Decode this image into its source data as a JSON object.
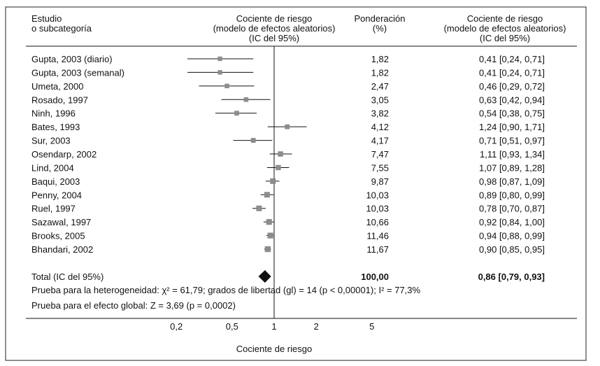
{
  "chart_data": {
    "type": "forest",
    "headers": {
      "study": [
        "Estudio",
        "o subcategoría"
      ],
      "plot": [
        "Cociente de riesgo",
        "(modelo de efectos aleatorios)",
        "(IC del 95%)"
      ],
      "weight": [
        "Ponderación",
        "(%)"
      ],
      "ci": [
        "Cociente de riesgo",
        "(modelo de efectos aleatorios)",
        "(IC del 95%)"
      ]
    },
    "studies": [
      {
        "name": "Gupta, 2003 (diario)",
        "weight": "1,82",
        "rr": 0.41,
        "lo": 0.24,
        "hi": 0.71,
        "ci_text": "0,41 [0,24, 0,71]"
      },
      {
        "name": "Gupta, 2003 (semanal)",
        "weight": "1,82",
        "rr": 0.41,
        "lo": 0.24,
        "hi": 0.71,
        "ci_text": "0,41 [0,24, 0,71]"
      },
      {
        "name": "Umeta, 2000",
        "weight": "2,47",
        "rr": 0.46,
        "lo": 0.29,
        "hi": 0.72,
        "ci_text": "0,46 [0,29, 0,72]"
      },
      {
        "name": "Rosado, 1997",
        "weight": "3,05",
        "rr": 0.63,
        "lo": 0.42,
        "hi": 0.94,
        "ci_text": "0,63 [0,42, 0,94]"
      },
      {
        "name": "Ninh, 1996",
        "weight": "3,82",
        "rr": 0.54,
        "lo": 0.38,
        "hi": 0.75,
        "ci_text": "0,54 [0,38, 0,75]"
      },
      {
        "name": "Bates, 1993",
        "weight": "4,12",
        "rr": 1.24,
        "lo": 0.9,
        "hi": 1.71,
        "ci_text": "1,24 [0,90, 1,71]"
      },
      {
        "name": "Sur, 2003",
        "weight": "4,17",
        "rr": 0.71,
        "lo": 0.51,
        "hi": 0.97,
        "ci_text": "0,71 [0,51, 0,97]"
      },
      {
        "name": "Osendarp, 2002",
        "weight": "7,47",
        "rr": 1.11,
        "lo": 0.93,
        "hi": 1.34,
        "ci_text": "1,11 [0,93, 1,34]"
      },
      {
        "name": "Lind, 2004",
        "weight": "7,55",
        "rr": 1.07,
        "lo": 0.89,
        "hi": 1.28,
        "ci_text": "1,07 [0,89, 1,28]"
      },
      {
        "name": "Baqui, 2003",
        "weight": "9,87",
        "rr": 0.98,
        "lo": 0.87,
        "hi": 1.09,
        "ci_text": "0,98 [0,87, 1,09]"
      },
      {
        "name": "Penny, 2004",
        "weight": "10,03",
        "rr": 0.89,
        "lo": 0.8,
        "hi": 0.99,
        "ci_text": "0,89 [0,80, 0,99]"
      },
      {
        "name": "Ruel, 1997",
        "weight": "10,03",
        "rr": 0.78,
        "lo": 0.7,
        "hi": 0.87,
        "ci_text": "0,78 [0,70, 0,87]"
      },
      {
        "name": "Sazawal, 1997",
        "weight": "10,66",
        "rr": 0.92,
        "lo": 0.84,
        "hi": 1.0,
        "ci_text": "0,92 [0,84, 1,00]"
      },
      {
        "name": "Brooks, 2005",
        "weight": "11,46",
        "rr": 0.94,
        "lo": 0.88,
        "hi": 0.99,
        "ci_text": "0,94 [0,88, 0,99]"
      },
      {
        "name": "Bhandari, 2002",
        "weight": "11,67",
        "rr": 0.9,
        "lo": 0.85,
        "hi": 0.95,
        "ci_text": "0,90 [0,85, 0,95]"
      }
    ],
    "total": {
      "name": "Total (IC del 95%)",
      "weight": "100,00",
      "rr": 0.86,
      "lo": 0.79,
      "hi": 0.93,
      "ci_text": "0,86 [0,79, 0,93]"
    },
    "heterogeneity": "Prueba para la heterogeneidad: χ² = 61,79; grados de libertad (gl) = 14 (p < 0,00001); I² = 77,3%",
    "overall_effect": "Prueba para el efecto global: Z = 3,69 (p = 0,0002)",
    "x_scale": "log",
    "x_ticks": [
      {
        "v": 0.2,
        "label": "0,2"
      },
      {
        "v": 0.5,
        "label": "0,5"
      },
      {
        "v": 1,
        "label": "1"
      },
      {
        "v": 2,
        "label": "2"
      },
      {
        "v": 5,
        "label": "5"
      }
    ],
    "xlabel": "Cociente de riesgo",
    "colors": {
      "marker": "#8c8c8c",
      "diamond": "#111111"
    }
  }
}
